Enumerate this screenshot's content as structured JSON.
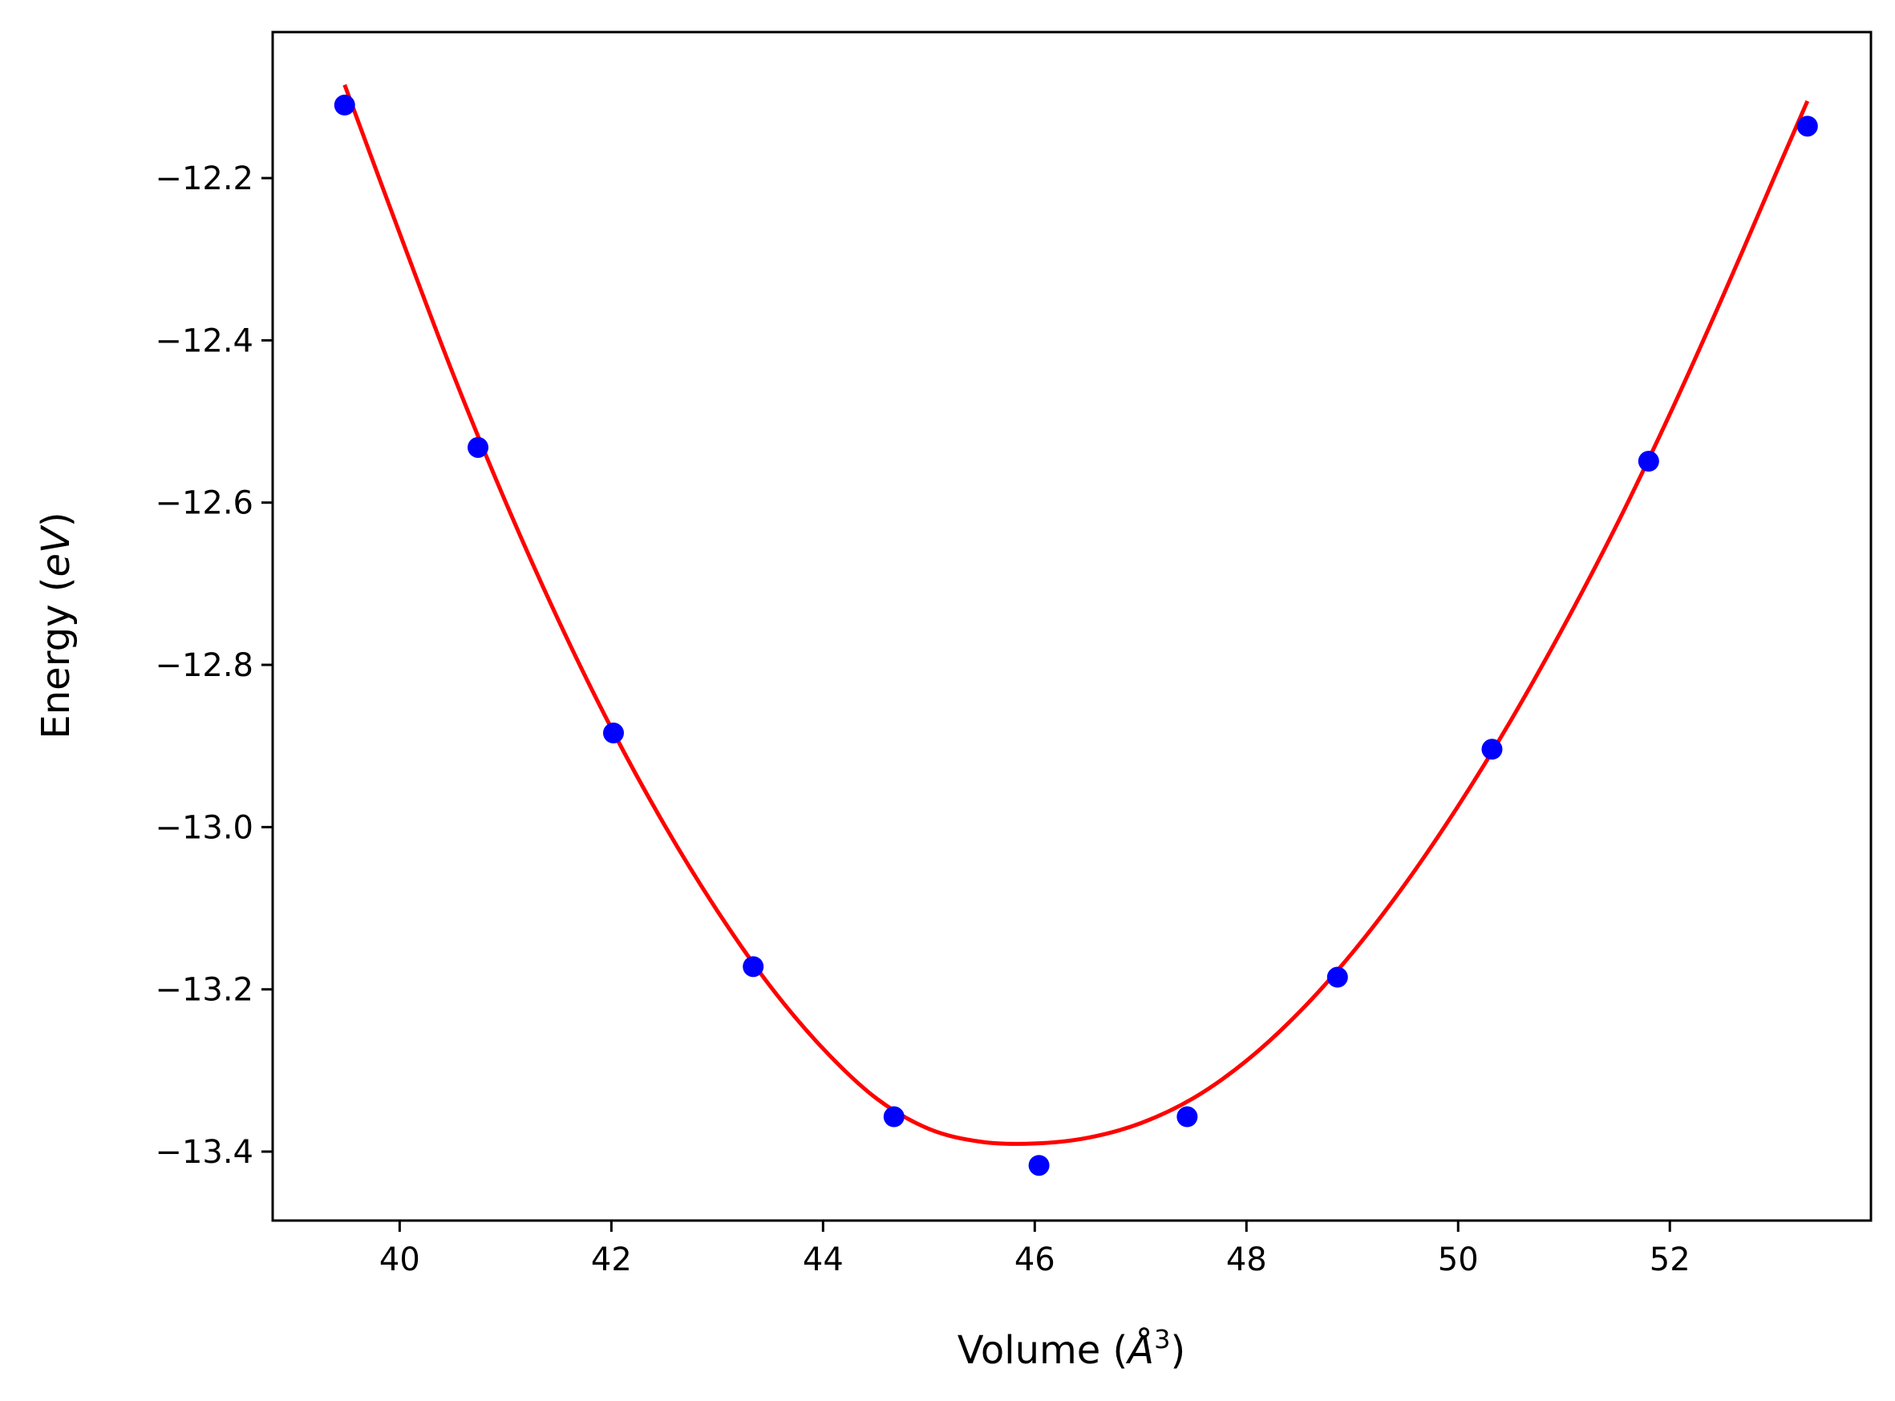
{
  "chart_data": {
    "type": "scatter",
    "xlabel_prefix": "Volume (",
    "xlabel_unit": "Å",
    "xlabel_exp": "3",
    "xlabel_suffix": ")",
    "ylabel_prefix": "Energy (",
    "ylabel_unit": "eV",
    "ylabel_suffix": ")",
    "xlim": [
      38.8,
      53.9
    ],
    "ylim": [
      -13.485,
      -12.02
    ],
    "xticks": [
      40,
      42,
      44,
      46,
      48,
      50,
      52
    ],
    "xtick_labels": [
      "40",
      "42",
      "44",
      "46",
      "48",
      "50",
      "52"
    ],
    "yticks": [
      -12.2,
      -12.4,
      -12.6,
      -12.8,
      -13.0,
      -13.2,
      -13.4
    ],
    "ytick_labels": [
      "−12.2",
      "−12.4",
      "−12.6",
      "−12.8",
      "−13.0",
      "−13.2",
      "−13.4"
    ],
    "grid": false,
    "series": [
      {
        "kind": "points",
        "color": "#0000ff",
        "x": [
          39.48,
          40.74,
          42.02,
          43.34,
          44.67,
          46.04,
          47.44,
          48.86,
          50.32,
          51.8,
          53.3
        ],
        "y": [
          -12.11,
          -12.532,
          -12.884,
          -13.172,
          -13.357,
          -13.417,
          -13.357,
          -13.185,
          -12.904,
          -12.549,
          -12.136
        ]
      },
      {
        "kind": "fit-curve",
        "color": "#ff0000",
        "x": [
          39.48,
          40.0,
          40.5,
          41.0,
          41.5,
          42.0,
          42.5,
          43.0,
          43.5,
          44.0,
          44.5,
          45.0,
          45.5,
          46.0,
          46.5,
          47.0,
          47.5,
          48.0,
          48.5,
          49.0,
          49.5,
          50.0,
          50.5,
          51.0,
          51.5,
          52.0,
          52.5,
          53.0,
          53.3
        ],
        "y": [
          -12.085,
          -12.268,
          -12.44,
          -12.599,
          -12.745,
          -12.878,
          -12.997,
          -13.103,
          -13.196,
          -13.273,
          -13.334,
          -13.372,
          -13.388,
          -13.39,
          -13.383,
          -13.365,
          -13.334,
          -13.288,
          -13.228,
          -13.155,
          -13.07,
          -12.974,
          -12.868,
          -12.752,
          -12.627,
          -12.491,
          -12.346,
          -12.195,
          -12.105
        ]
      }
    ]
  }
}
